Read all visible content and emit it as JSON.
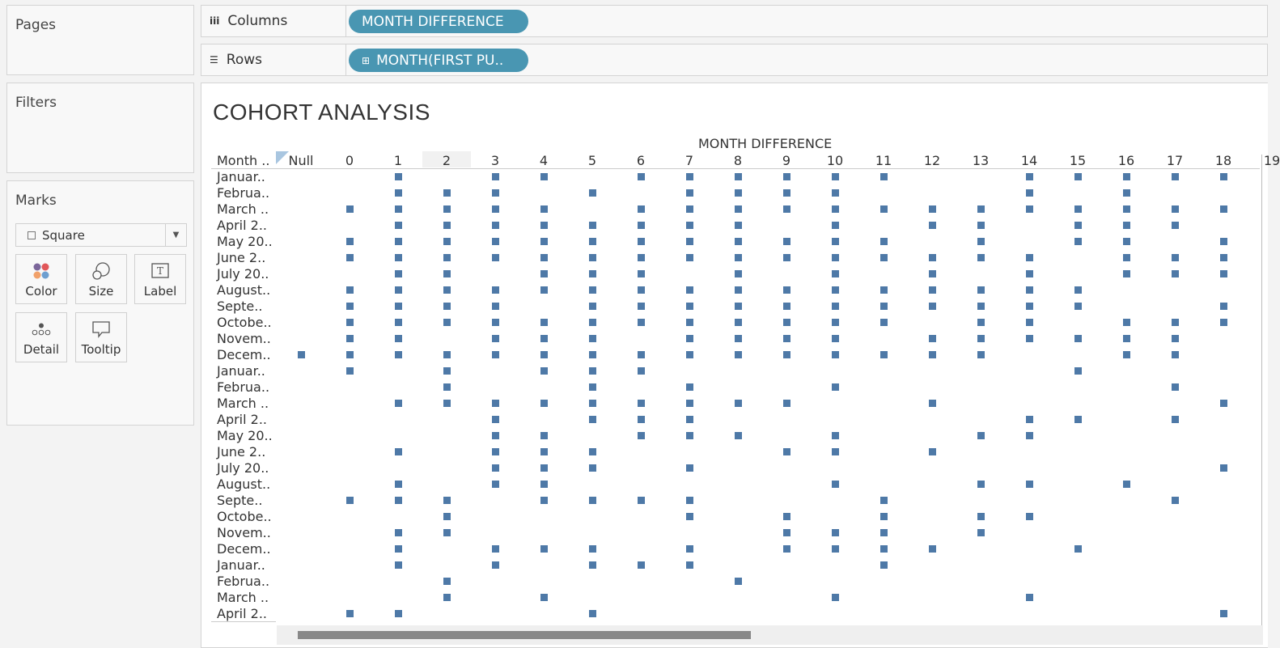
{
  "panels": {
    "pages": "Pages",
    "filters": "Filters",
    "marks": "Marks"
  },
  "marks_card": {
    "mark_type": "Square",
    "buttons": [
      "Color",
      "Size",
      "Label",
      "Detail",
      "Tooltip"
    ]
  },
  "shelves": {
    "columns_label": "Columns",
    "columns_pill": "MONTH DIFFERENCE",
    "rows_label": "Rows",
    "rows_pill": "MONTH(FIRST PU.."
  },
  "chart_data": {
    "type": "scatter",
    "mark": "square",
    "title": "COHORT ANALYSIS",
    "xlabel": "MONTH DIFFERENCE",
    "row_header": "Month ..",
    "mark_color": "#4e79a7",
    "columns": [
      "Null",
      "0",
      "1",
      "2",
      "3",
      "4",
      "5",
      "6",
      "7",
      "8",
      "9",
      "10",
      "11",
      "12",
      "13",
      "14",
      "15",
      "16",
      "17",
      "18",
      "19"
    ],
    "rows": [
      {
        "label": "Januar..",
        "marks": [
          "1",
          "3",
          "4",
          "6",
          "7",
          "8",
          "9",
          "10",
          "11",
          "14",
          "15",
          "16",
          "17",
          "18"
        ]
      },
      {
        "label": "Februa..",
        "marks": [
          "1",
          "2",
          "3",
          "5",
          "7",
          "8",
          "9",
          "10",
          "14",
          "16"
        ]
      },
      {
        "label": "March ..",
        "marks": [
          "0",
          "1",
          "2",
          "3",
          "4",
          "6",
          "7",
          "8",
          "9",
          "10",
          "11",
          "12",
          "13",
          "14",
          "15",
          "16",
          "17",
          "18"
        ]
      },
      {
        "label": "April 2..",
        "marks": [
          "1",
          "2",
          "3",
          "4",
          "5",
          "6",
          "7",
          "8",
          "10",
          "12",
          "13",
          "15",
          "16",
          "17"
        ]
      },
      {
        "label": "May 20..",
        "marks": [
          "0",
          "1",
          "2",
          "3",
          "4",
          "5",
          "6",
          "7",
          "8",
          "9",
          "10",
          "11",
          "13",
          "15",
          "16",
          "18"
        ]
      },
      {
        "label": "June 2..",
        "marks": [
          "0",
          "1",
          "2",
          "3",
          "4",
          "5",
          "6",
          "7",
          "8",
          "9",
          "10",
          "11",
          "12",
          "13",
          "14",
          "16",
          "17",
          "18"
        ]
      },
      {
        "label": "July 20..",
        "marks": [
          "1",
          "2",
          "4",
          "5",
          "6",
          "8",
          "10",
          "12",
          "14",
          "16",
          "17",
          "18"
        ]
      },
      {
        "label": "August..",
        "marks": [
          "0",
          "1",
          "2",
          "3",
          "4",
          "5",
          "6",
          "7",
          "8",
          "9",
          "10",
          "11",
          "12",
          "13",
          "14",
          "15"
        ]
      },
      {
        "label": "Septe..",
        "marks": [
          "0",
          "1",
          "2",
          "3",
          "5",
          "6",
          "7",
          "8",
          "9",
          "10",
          "11",
          "12",
          "13",
          "14",
          "15",
          "18"
        ]
      },
      {
        "label": "Octobe..",
        "marks": [
          "0",
          "1",
          "2",
          "3",
          "4",
          "5",
          "6",
          "7",
          "8",
          "9",
          "10",
          "11",
          "13",
          "14",
          "16",
          "17",
          "18"
        ]
      },
      {
        "label": "Novem..",
        "marks": [
          "0",
          "1",
          "3",
          "4",
          "5",
          "7",
          "8",
          "9",
          "10",
          "12",
          "13",
          "14",
          "15",
          "16",
          "17"
        ]
      },
      {
        "label": "Decem..",
        "marks": [
          "Null",
          "0",
          "1",
          "2",
          "3",
          "4",
          "5",
          "6",
          "7",
          "8",
          "9",
          "10",
          "11",
          "12",
          "13",
          "16",
          "17"
        ]
      },
      {
        "label": "Januar..",
        "marks": [
          "0",
          "2",
          "4",
          "5",
          "6",
          "15"
        ]
      },
      {
        "label": "Februa..",
        "marks": [
          "2",
          "5",
          "7",
          "10",
          "17"
        ]
      },
      {
        "label": "March ..",
        "marks": [
          "1",
          "2",
          "3",
          "4",
          "5",
          "6",
          "7",
          "8",
          "9",
          "12",
          "18"
        ]
      },
      {
        "label": "April 2..",
        "marks": [
          "3",
          "5",
          "6",
          "7",
          "14",
          "15",
          "17"
        ]
      },
      {
        "label": "May 20..",
        "marks": [
          "3",
          "4",
          "6",
          "7",
          "8",
          "10",
          "13",
          "14"
        ]
      },
      {
        "label": "June 2..",
        "marks": [
          "1",
          "3",
          "4",
          "5",
          "9",
          "10",
          "12"
        ]
      },
      {
        "label": "July 20..",
        "marks": [
          "3",
          "4",
          "5",
          "7",
          "18"
        ]
      },
      {
        "label": "August..",
        "marks": [
          "1",
          "3",
          "4",
          "10",
          "13",
          "14",
          "16"
        ]
      },
      {
        "label": "Septe..",
        "marks": [
          "0",
          "1",
          "2",
          "4",
          "5",
          "6",
          "7",
          "11",
          "17"
        ]
      },
      {
        "label": "Octobe..",
        "marks": [
          "2",
          "7",
          "9",
          "11",
          "13",
          "14"
        ]
      },
      {
        "label": "Novem..",
        "marks": [
          "1",
          "2",
          "9",
          "10",
          "11",
          "13"
        ]
      },
      {
        "label": "Decem..",
        "marks": [
          "1",
          "3",
          "4",
          "5",
          "7",
          "9",
          "10",
          "11",
          "12",
          "15"
        ]
      },
      {
        "label": "Januar..",
        "marks": [
          "1",
          "3",
          "5",
          "6",
          "7",
          "11"
        ]
      },
      {
        "label": "Februa..",
        "marks": [
          "2",
          "8"
        ]
      },
      {
        "label": "March ..",
        "marks": [
          "2",
          "4",
          "10",
          "14"
        ]
      },
      {
        "label": "April 2..",
        "marks": [
          "0",
          "1",
          "5",
          "18"
        ]
      }
    ]
  }
}
